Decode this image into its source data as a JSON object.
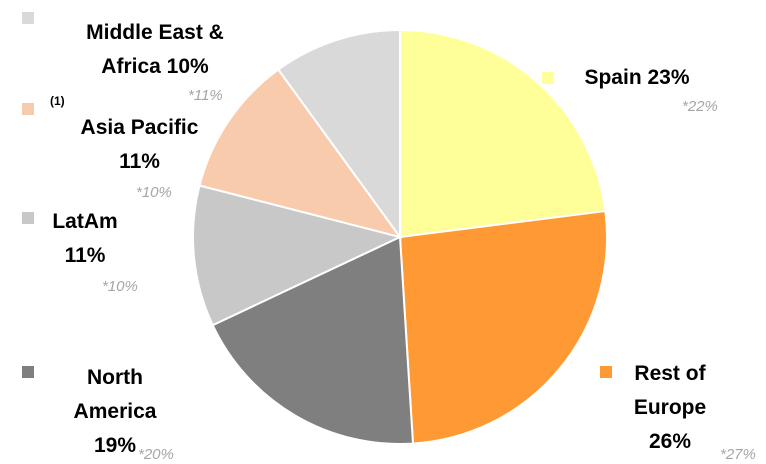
{
  "chart_data": {
    "type": "pie",
    "categories": [
      "Spain",
      "Rest of Europe",
      "North America",
      "LatAm",
      "Asia Pacific",
      "Middle East & Africa"
    ],
    "values": [
      23,
      26,
      19,
      11,
      11,
      10
    ],
    "value_labels": [
      "23%",
      "26%",
      "19%",
      "11%",
      "11%",
      "10%"
    ],
    "comparison_labels": [
      "*22%",
      "*27%",
      "*20%",
      "*10%",
      "*10%",
      "*11%"
    ],
    "colors": [
      "#ffff99",
      "#ff9933",
      "#7f7f7f",
      "#c8c8c8",
      "#f8cbad",
      "#d9d9d9"
    ],
    "annotations": [
      "(1)"
    ]
  }
}
